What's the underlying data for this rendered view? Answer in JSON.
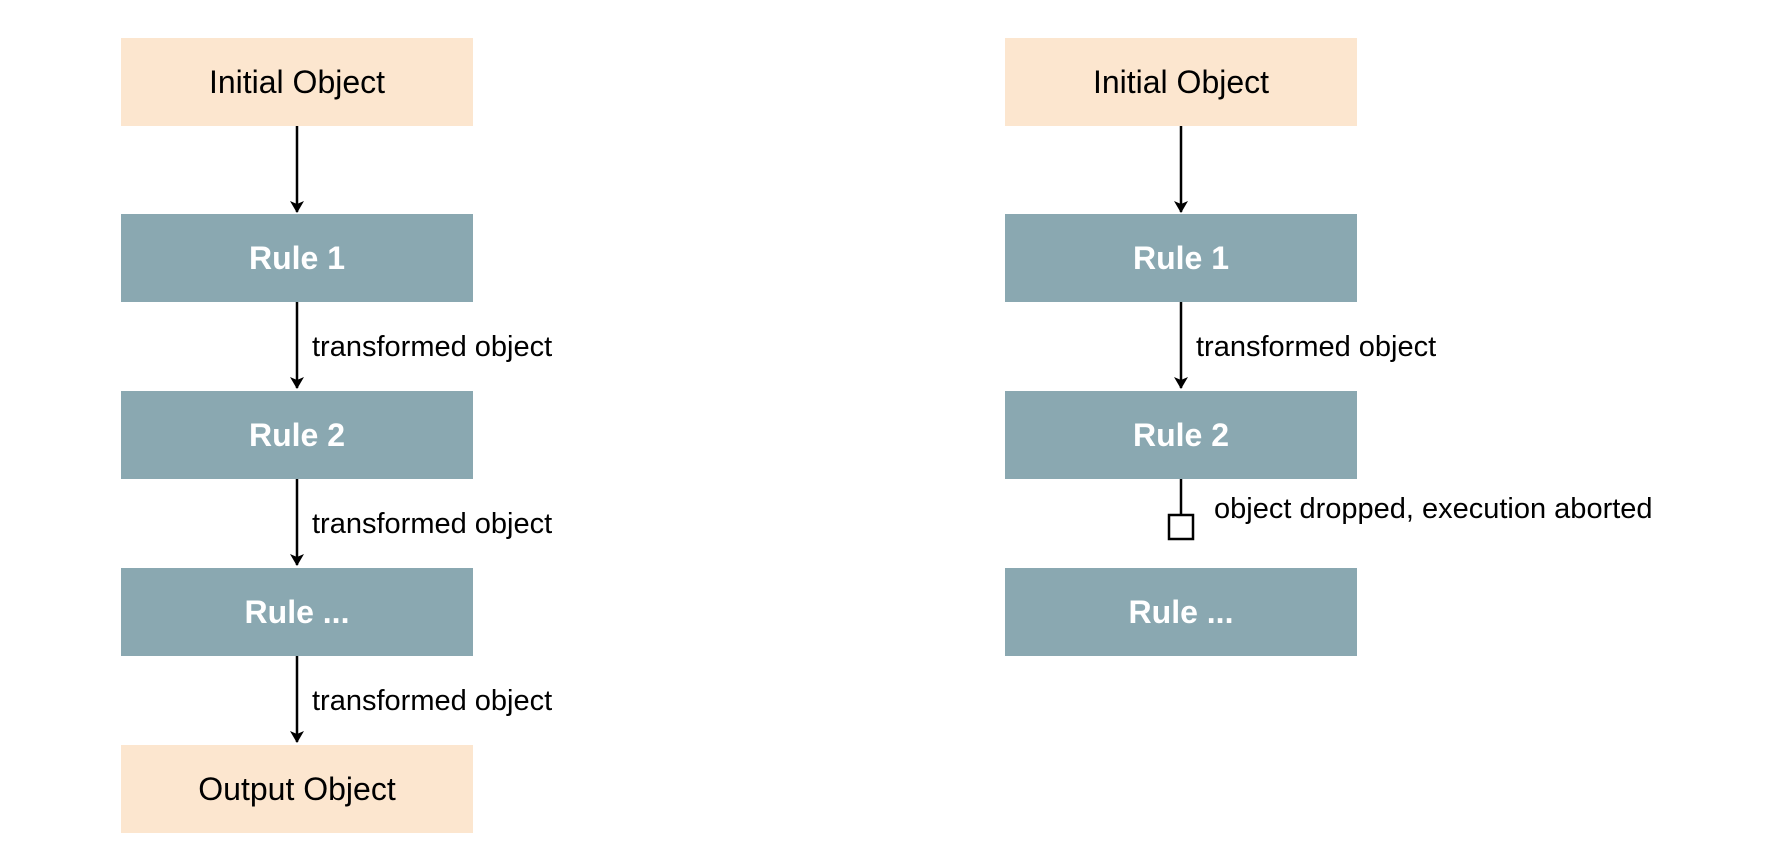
{
  "left_flow": {
    "initial": "Initial Object",
    "rule1": "Rule 1",
    "rule2": "Rule 2",
    "rule_more": "Rule ...",
    "output": "Output Object",
    "edge1": "transformed object",
    "edge2": "transformed object",
    "edge3": "transformed object"
  },
  "right_flow": {
    "initial": "Initial Object",
    "rule1": "Rule 1",
    "rule2": "Rule 2",
    "rule_more": "Rule ...",
    "edge1": "transformed object",
    "dropped": "object dropped, execution aborted"
  },
  "colors": {
    "io_fill": "#fce6cf",
    "rule_fill": "#8aa8b1",
    "rule_text": "#ffffff",
    "connector": "#000000"
  }
}
